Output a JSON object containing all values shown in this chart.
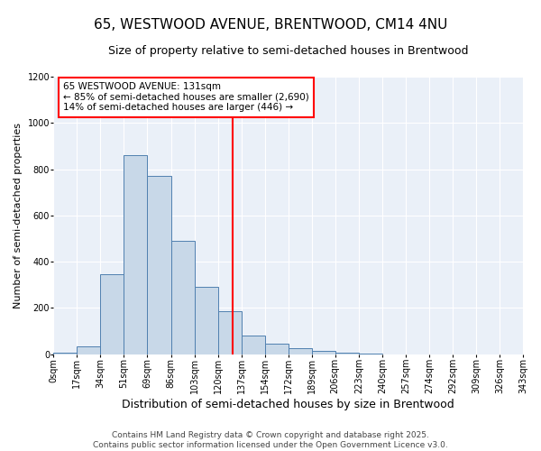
{
  "title": "65, WESTWOOD AVENUE, BRENTWOOD, CM14 4NU",
  "subtitle": "Size of property relative to semi-detached houses in Brentwood",
  "xlabel": "Distribution of semi-detached houses by size in Brentwood",
  "ylabel": "Number of semi-detached properties",
  "bin_labels": [
    "0sqm",
    "17sqm",
    "34sqm",
    "51sqm",
    "69sqm",
    "86sqm",
    "103sqm",
    "120sqm",
    "137sqm",
    "154sqm",
    "172sqm",
    "189sqm",
    "206sqm",
    "223sqm",
    "240sqm",
    "257sqm",
    "274sqm",
    "292sqm",
    "309sqm",
    "326sqm",
    "343sqm"
  ],
  "bar_heights": [
    5,
    35,
    345,
    860,
    770,
    490,
    290,
    185,
    80,
    45,
    25,
    15,
    8,
    3,
    0,
    0,
    0,
    0,
    0,
    0
  ],
  "bar_color": "#c8d8e8",
  "bar_edge_color": "#5080b0",
  "vline_color": "red",
  "annotation_line1": "65 WESTWOOD AVENUE: 131sqm",
  "annotation_line2": "← 85% of semi-detached houses are smaller (2,690)",
  "annotation_line3": "14% of semi-detached houses are larger (446) →",
  "annotation_box_color": "white",
  "annotation_box_edge_color": "red",
  "ylim": [
    0,
    1200
  ],
  "yticks": [
    0,
    200,
    400,
    600,
    800,
    1000,
    1200
  ],
  "background_color": "#eaf0f8",
  "footer": "Contains HM Land Registry data © Crown copyright and database right 2025.\nContains public sector information licensed under the Open Government Licence v3.0.",
  "title_fontsize": 11,
  "subtitle_fontsize": 9,
  "xlabel_fontsize": 9,
  "ylabel_fontsize": 8,
  "tick_fontsize": 7,
  "annotation_fontsize": 7.5,
  "footer_fontsize": 6.5
}
